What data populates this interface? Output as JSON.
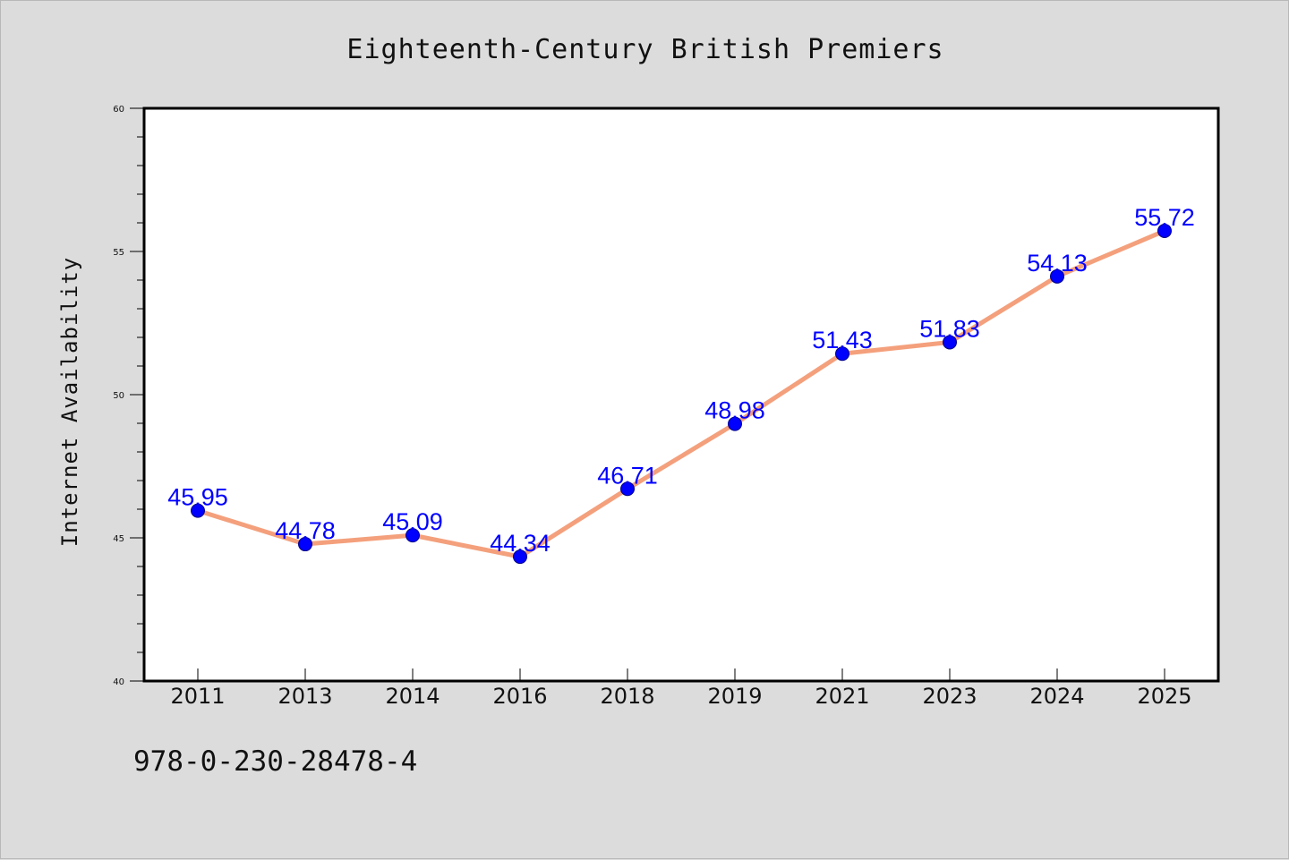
{
  "chart_data": {
    "type": "line",
    "title": "Eighteenth-Century British Premiers",
    "xlabel": "",
    "ylabel": "Internet Availability",
    "categories": [
      "2011",
      "2013",
      "2014",
      "2016",
      "2018",
      "2019",
      "2021",
      "2023",
      "2024",
      "2025"
    ],
    "values": [
      45.95,
      44.78,
      45.09,
      44.34,
      46.71,
      48.98,
      51.43,
      51.83,
      54.13,
      55.72
    ],
    "data_labels": [
      "45.95",
      "44.78",
      "45.09",
      "44.34",
      "46.71",
      "48.98",
      "51.43",
      "51.83",
      "54.13",
      "55.72"
    ],
    "ylim": [
      40,
      60
    ],
    "yticks": [
      "40",
      "45",
      "50",
      "55",
      "60"
    ],
    "grid": false,
    "legend": "none",
    "colors": {
      "line": "#f4a07c",
      "marker": "#0000ff",
      "data_label": "#0000ff",
      "background": "#dcdcdc",
      "plot_background": "#ffffff"
    }
  },
  "footer": {
    "isbn": "978-0-230-28478-4"
  }
}
